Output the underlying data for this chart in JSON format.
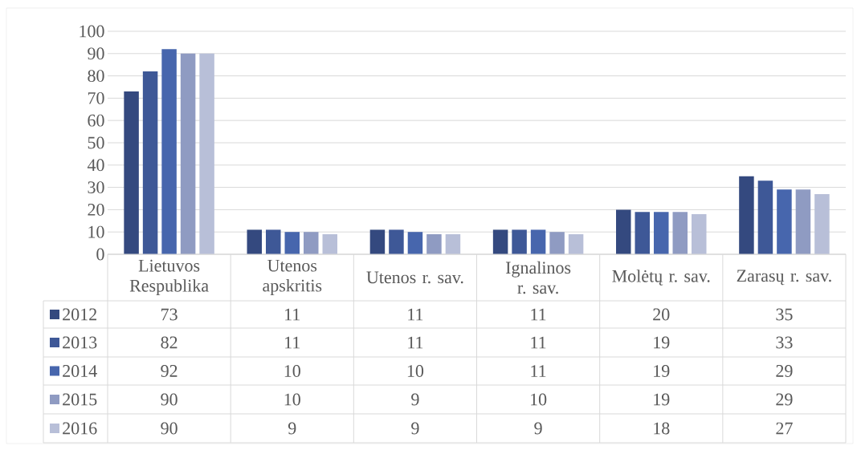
{
  "chart_data": {
    "type": "bar",
    "categories": [
      "Lietuvos Respublika",
      "Utenos apskritis",
      "Utenos r. sav.",
      "Ignalinos r. sav.",
      "Molėtų r. sav.",
      "Zarasų r. sav."
    ],
    "series": [
      {
        "name": "2012",
        "color": "#34497f",
        "values": [
          73,
          11,
          11,
          11,
          20,
          35
        ]
      },
      {
        "name": "2013",
        "color": "#3e5897",
        "values": [
          82,
          11,
          11,
          11,
          19,
          33
        ]
      },
      {
        "name": "2014",
        "color": "#4766ad",
        "values": [
          92,
          10,
          10,
          11,
          19,
          29
        ]
      },
      {
        "name": "2015",
        "color": "#8f9bc2",
        "values": [
          90,
          10,
          9,
          10,
          19,
          29
        ]
      },
      {
        "name": "2016",
        "color": "#b8bfd8",
        "values": [
          90,
          9,
          9,
          9,
          18,
          27
        ]
      }
    ],
    "ylim": [
      0,
      100
    ],
    "yticks": [
      0,
      10,
      20,
      30,
      40,
      50,
      60,
      70,
      80,
      90,
      100
    ],
    "grid": "y",
    "legend": "bottom",
    "data_labels": true
  }
}
